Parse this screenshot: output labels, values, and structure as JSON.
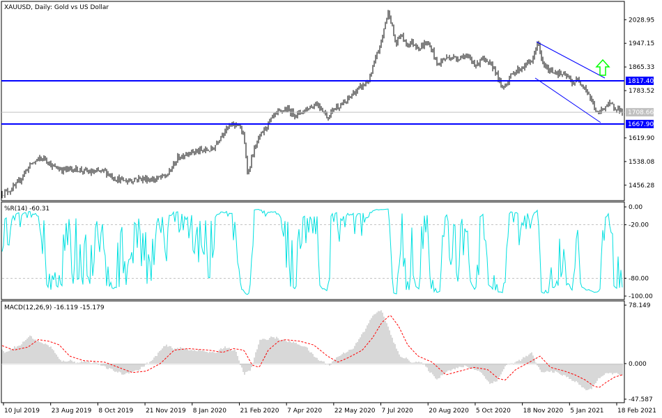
{
  "chart_data": [
    {
      "type": "candlestick",
      "title": "XAUUSD, Daily:  Gold vs US Dollar",
      "ylim": [
        1410,
        2085
      ],
      "y_ticks": [
        "2028.95",
        "1947.15",
        "1865.33",
        "1783.52",
        "1619.90",
        "1538.08",
        "1456.28"
      ],
      "price_path": [
        [
          0,
          1425
        ],
        [
          15,
          1440
        ],
        [
          25,
          1460
        ],
        [
          35,
          1500
        ],
        [
          45,
          1530
        ],
        [
          55,
          1545
        ],
        [
          65,
          1550
        ],
        [
          75,
          1520
        ],
        [
          90,
          1510
        ],
        [
          110,
          1512
        ],
        [
          130,
          1500
        ],
        [
          150,
          1505
        ],
        [
          165,
          1480
        ],
        [
          180,
          1470
        ],
        [
          200,
          1480
        ],
        [
          220,
          1475
        ],
        [
          240,
          1490
        ],
        [
          255,
          1550
        ],
        [
          270,
          1570
        ],
        [
          290,
          1575
        ],
        [
          305,
          1580
        ],
        [
          320,
          1640
        ],
        [
          330,
          1660
        ],
        [
          342,
          1670
        ],
        [
          350,
          1620
        ],
        [
          356,
          1490
        ],
        [
          362,
          1560
        ],
        [
          372,
          1620
        ],
        [
          382,
          1660
        ],
        [
          395,
          1700
        ],
        [
          410,
          1720
        ],
        [
          425,
          1700
        ],
        [
          440,
          1720
        ],
        [
          455,
          1740
        ],
        [
          465,
          1710
        ],
        [
          470,
          1690
        ],
        [
          480,
          1725
        ],
        [
          495,
          1740
        ],
        [
          505,
          1770
        ],
        [
          520,
          1800
        ],
        [
          530,
          1820
        ],
        [
          540,
          1900
        ],
        [
          548,
          1960
        ],
        [
          553,
          2020
        ],
        [
          558,
          2060
        ],
        [
          563,
          2000
        ],
        [
          568,
          1940
        ],
        [
          575,
          1980
        ],
        [
          582,
          1945
        ],
        [
          592,
          1950
        ],
        [
          602,
          1930
        ],
        [
          612,
          1950
        ],
        [
          620,
          1925
        ],
        [
          628,
          1870
        ],
        [
          635,
          1890
        ],
        [
          645,
          1900
        ],
        [
          655,
          1895
        ],
        [
          665,
          1905
        ],
        [
          675,
          1890
        ],
        [
          685,
          1870
        ],
        [
          690,
          1900
        ],
        [
          698,
          1880
        ],
        [
          710,
          1860
        ],
        [
          720,
          1790
        ],
        [
          728,
          1815
        ],
        [
          738,
          1850
        ],
        [
          748,
          1860
        ],
        [
          758,
          1880
        ],
        [
          765,
          1890
        ],
        [
          771,
          1955
        ],
        [
          778,
          1880
        ],
        [
          786,
          1855
        ],
        [
          795,
          1850
        ],
        [
          805,
          1840
        ],
        [
          815,
          1830
        ],
        [
          820,
          1810
        ],
        [
          830,
          1820
        ],
        [
          838,
          1800
        ],
        [
          845,
          1770
        ],
        [
          852,
          1730
        ],
        [
          858,
          1700
        ],
        [
          864,
          1720
        ],
        [
          872,
          1735
        ],
        [
          880,
          1730
        ],
        [
          888,
          1720
        ],
        [
          893,
          1708
        ]
      ],
      "horizontal_levels": [
        {
          "label": "1817.40",
          "color": "#0000ff"
        },
        {
          "label": "1667.90",
          "color": "#0000ff"
        },
        {
          "label": "1708.66",
          "color": "#c0c0c0"
        }
      ],
      "annotation": {
        "type": "arrow-up",
        "color": "#00ff00"
      },
      "channel_color": "#0000ff"
    },
    {
      "type": "line",
      "title": "%R(14) -60.31",
      "ylim": [
        -100,
        0
      ],
      "y_ticks": [
        "0.00",
        "-20.00",
        "-80.00",
        "-100.00"
      ],
      "levels": [
        -20,
        -80
      ],
      "series": [
        {
          "color": "#00e0e0"
        }
      ]
    },
    {
      "type": "bar-line",
      "title": "MACD(12,26,9) -16.119 -15.179",
      "ylim": [
        -47.587,
        78.149
      ],
      "y_ticks": [
        "78.149",
        "0.000",
        "-47.587"
      ],
      "histogram_color": "#b0b0b0",
      "signal_color": "#ff0000",
      "signal_path": [
        [
          0,
          25
        ],
        [
          20,
          18
        ],
        [
          40,
          22
        ],
        [
          55,
          32
        ],
        [
          70,
          30
        ],
        [
          85,
          25
        ],
        [
          100,
          10
        ],
        [
          120,
          4
        ],
        [
          150,
          2
        ],
        [
          170,
          -5
        ],
        [
          190,
          -12
        ],
        [
          210,
          -10
        ],
        [
          230,
          0
        ],
        [
          250,
          18
        ],
        [
          270,
          20
        ],
        [
          300,
          18
        ],
        [
          320,
          15
        ],
        [
          335,
          20
        ],
        [
          350,
          18
        ],
        [
          362,
          -2
        ],
        [
          372,
          -5
        ],
        [
          385,
          18
        ],
        [
          400,
          30
        ],
        [
          410,
          32
        ],
        [
          430,
          30
        ],
        [
          450,
          25
        ],
        [
          470,
          10
        ],
        [
          485,
          2
        ],
        [
          500,
          8
        ],
        [
          520,
          18
        ],
        [
          535,
          35
        ],
        [
          548,
          55
        ],
        [
          560,
          65
        ],
        [
          572,
          50
        ],
        [
          585,
          25
        ],
        [
          600,
          10
        ],
        [
          620,
          2
        ],
        [
          640,
          -15
        ],
        [
          660,
          -10
        ],
        [
          680,
          -5
        ],
        [
          700,
          -8
        ],
        [
          715,
          -20
        ],
        [
          725,
          -22
        ],
        [
          740,
          -8
        ],
        [
          760,
          2
        ],
        [
          775,
          10
        ],
        [
          790,
          -5
        ],
        [
          810,
          -10
        ],
        [
          825,
          -15
        ],
        [
          840,
          -22
        ],
        [
          852,
          -30
        ],
        [
          860,
          -32
        ],
        [
          870,
          -25
        ],
        [
          882,
          -18
        ],
        [
          893,
          -15
        ]
      ]
    }
  ],
  "x_axis": {
    "tick_labels": [
      "10 Jul 2019",
      "23 Aug 2019",
      "8 Oct 2019",
      "21 Nov 2019",
      "8 Jan 2020",
      "21 Feb 2020",
      "7 Apr 2020",
      "22 May 2020",
      "7 Jul 2020",
      "20 Aug 2020",
      "5 Oct 2020",
      "18 Nov 2020",
      "5 Jan 2021",
      "18 Feb 2021"
    ]
  }
}
